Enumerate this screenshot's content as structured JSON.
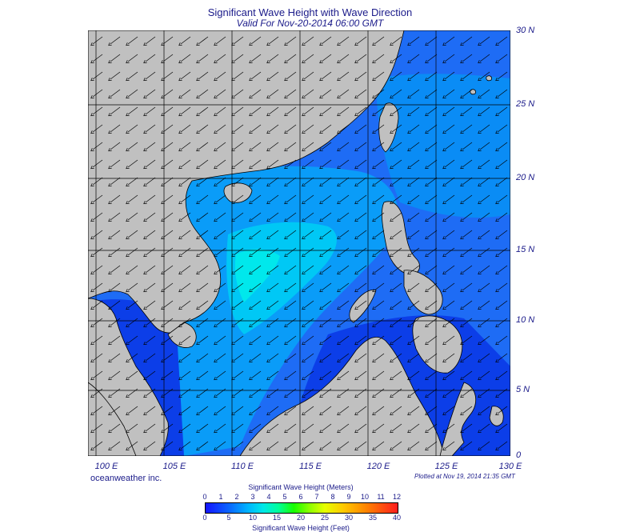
{
  "title": "Significant Wave Height with Wave Direction",
  "subtitle": "Valid For Nov-20-2014 06:00 GMT",
  "credit": "oceanweather inc.",
  "plotted": "Plotted at Nov 19, 2014 21:35 GMT",
  "map": {
    "lon_labels": [
      "100 E",
      "105 E",
      "110 E",
      "115 E",
      "120 E",
      "125 E",
      "130 E"
    ],
    "lat_labels": [
      "30 N",
      "25 N",
      "20 N",
      "15 N",
      "10 N",
      "5 N",
      "0"
    ],
    "lon_range": [
      99,
      130
    ],
    "lat_range": [
      0,
      30
    ],
    "land_color": "#c0c0c0",
    "wave_direction": "from northeast"
  },
  "colorbar": {
    "title_meters": "Significant Wave Height (Meters)",
    "title_feet": "Significant Wave Height (Feet)",
    "meters_ticks": [
      "0",
      "1",
      "2",
      "3",
      "4",
      "5",
      "6",
      "7",
      "8",
      "9",
      "10",
      "11",
      "12"
    ],
    "feet_ticks": [
      "0",
      "5",
      "10",
      "15",
      "20",
      "25",
      "30",
      "35",
      "40"
    ]
  }
}
